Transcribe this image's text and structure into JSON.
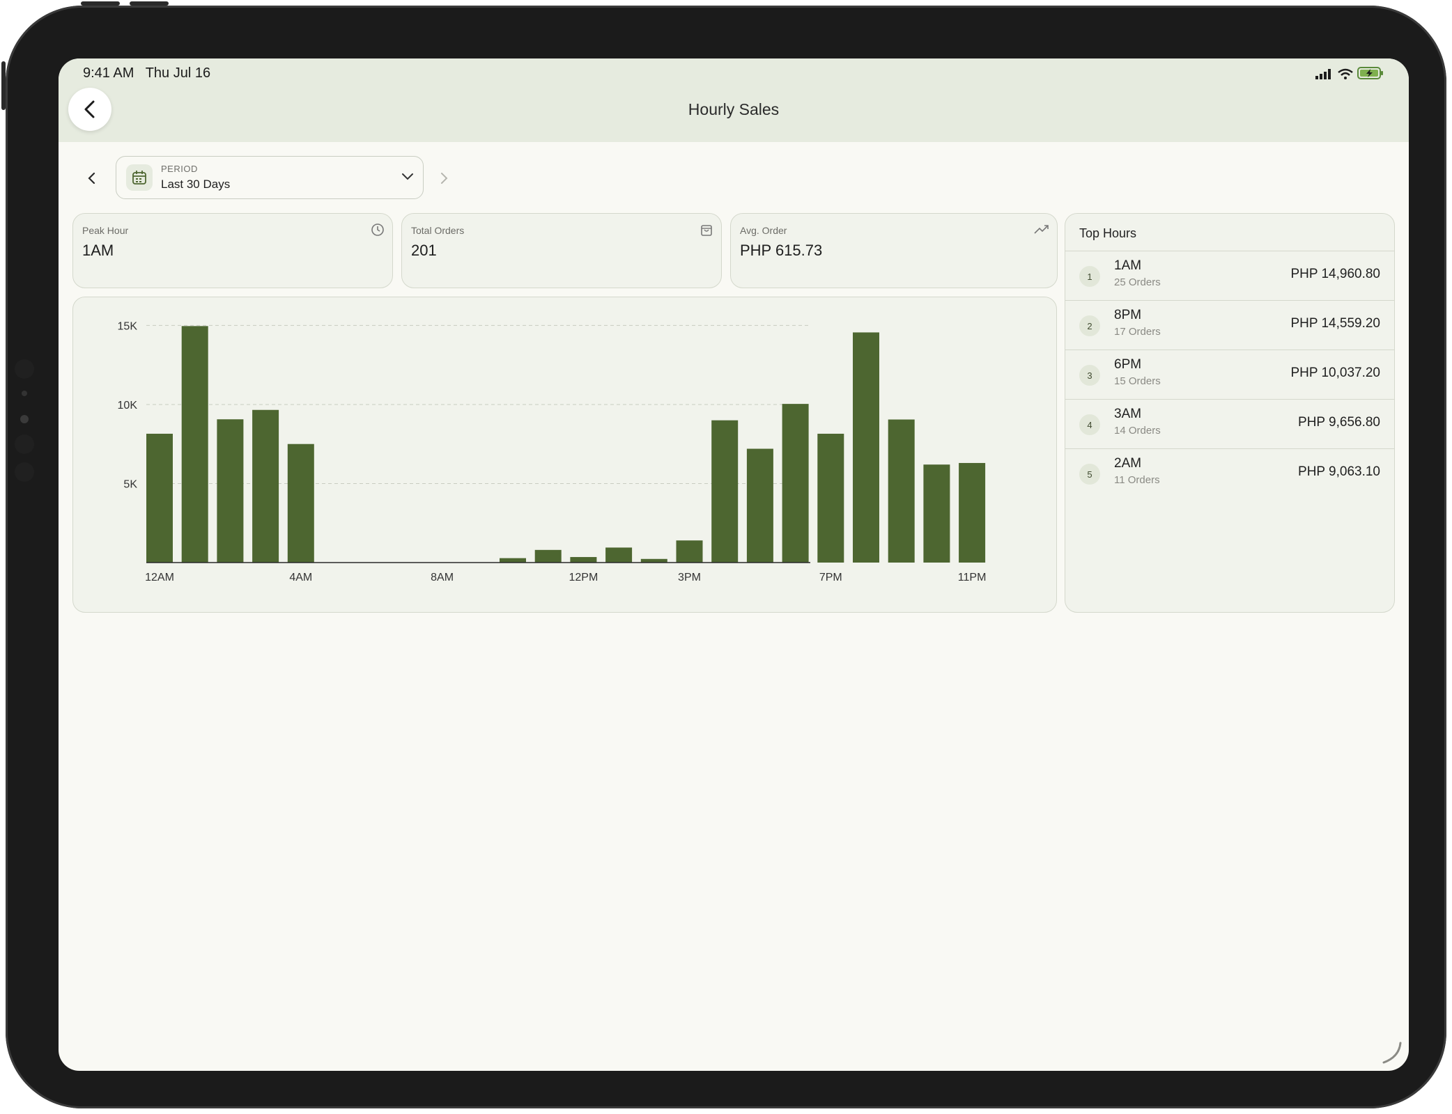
{
  "status_bar": {
    "time": "9:41 AM",
    "date": "Thu Jul 16"
  },
  "header": {
    "title": "Hourly Sales"
  },
  "period": {
    "label": "PERIOD",
    "value": "Last 30 Days"
  },
  "stats": {
    "peak_hour": {
      "label": "Peak Hour",
      "value": "1AM",
      "icon": "clock-icon"
    },
    "total_orders": {
      "label": "Total Orders",
      "value": "201",
      "icon": "shopping-bag-icon"
    },
    "avg_order": {
      "label": "Avg. Order",
      "value": "PHP 615.73",
      "icon": "trending-up-icon"
    }
  },
  "top_hours": {
    "title": "Top Hours",
    "rows": [
      {
        "rank": "1",
        "hour": "1AM",
        "orders": "25 Orders",
        "amount": "PHP 14,960.80"
      },
      {
        "rank": "2",
        "hour": "8PM",
        "orders": "17 Orders",
        "amount": "PHP 14,559.20"
      },
      {
        "rank": "3",
        "hour": "6PM",
        "orders": "15 Orders",
        "amount": "PHP 10,037.20"
      },
      {
        "rank": "4",
        "hour": "3AM",
        "orders": "14 Orders",
        "amount": "PHP 9,656.80"
      },
      {
        "rank": "5",
        "hour": "2AM",
        "orders": "11 Orders",
        "amount": "PHP 9,063.10"
      }
    ]
  },
  "colors": {
    "bar": "#4d6630",
    "accent_bg": "#e6ebdf",
    "page_bg": "#f9f9f4"
  },
  "chart_data": {
    "type": "bar",
    "categories": [
      "12AM",
      "1AM",
      "2AM",
      "3AM",
      "4AM",
      "5AM",
      "6AM",
      "7AM",
      "8AM",
      "9AM",
      "10AM",
      "11AM",
      "12PM",
      "1PM",
      "2PM",
      "3PM",
      "4PM",
      "5PM",
      "6PM",
      "7PM",
      "8PM",
      "9PM",
      "10PM",
      "11PM"
    ],
    "values": [
      8150,
      14960.8,
      9063.1,
      9656.8,
      7500,
      0,
      0,
      0,
      0,
      0,
      280,
      800,
      350,
      950,
      230,
      1400,
      9000,
      7200,
      10037.2,
      8150,
      14559.2,
      9050,
      6200,
      6300
    ],
    "x_tick_labels": [
      "12AM",
      "4AM",
      "8AM",
      "12PM",
      "3PM",
      "7PM",
      "11PM"
    ],
    "x_tick_indices": [
      0,
      4,
      8,
      12,
      15,
      19,
      23
    ],
    "y_ticks": [
      {
        "value": 5000,
        "label": "5K"
      },
      {
        "value": 10000,
        "label": "10K"
      },
      {
        "value": 15000,
        "label": "15K"
      }
    ],
    "ylim": [
      0,
      15000
    ],
    "grid": true,
    "title": "",
    "xlabel": "",
    "ylabel": ""
  }
}
